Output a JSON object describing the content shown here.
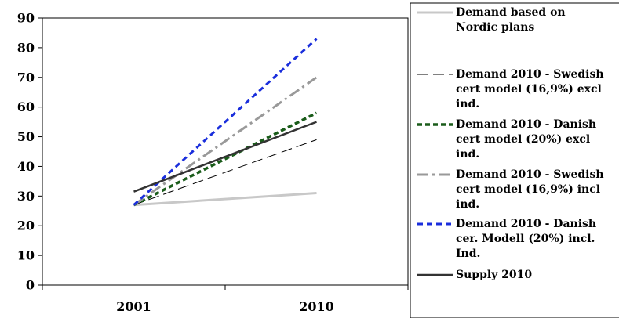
{
  "chart_data": {
    "type": "line",
    "title": "",
    "xlabel": "",
    "ylabel": "",
    "categories": [
      "2001",
      "2010"
    ],
    "ylim": [
      0,
      90
    ],
    "yticks": [
      "0",
      "10",
      "20",
      "30",
      "40",
      "50",
      "60",
      "70",
      "80",
      "90"
    ],
    "grid": false,
    "legend_position": "right",
    "series": [
      {
        "name": "Demand based on Nordic plans",
        "values": [
          27,
          31
        ],
        "color": "#c8c8c8",
        "style": "solid"
      },
      {
        "name": "Demand 2010 - Swedish cert model (16,9%) excl ind.",
        "values": [
          27,
          49
        ],
        "color": "#000000",
        "style": "long-dash"
      },
      {
        "name": "Demand 2010 - Danish cert model (20%) excl ind.",
        "values": [
          27,
          58
        ],
        "color": "#1a5c1a",
        "style": "dash"
      },
      {
        "name": "Demand 2010 - Swedish cert model (16,9%) incl ind.",
        "values": [
          27,
          70
        ],
        "color": "#999999",
        "style": "dash-dot"
      },
      {
        "name": "Demand 2010 - Danish cer. Modell (20%) incl. Ind.",
        "values": [
          27,
          83
        ],
        "color": "#1a2edc",
        "style": "dot-dash"
      },
      {
        "name": "Supply 2010",
        "values": [
          31.5,
          55
        ],
        "color": "#333333",
        "style": "solid"
      }
    ]
  }
}
